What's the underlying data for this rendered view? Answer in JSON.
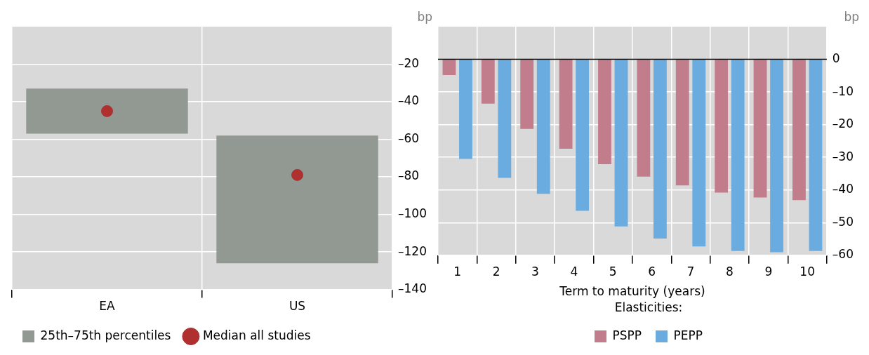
{
  "chart_data": [
    {
      "type": "bar",
      "categories": [
        "EA",
        "US"
      ],
      "ylabel": "bp",
      "ylim": [
        -140,
        0
      ],
      "yticks": [
        {
          "value": -140,
          "label": "–140"
        },
        {
          "value": -120,
          "label": "–120"
        },
        {
          "value": -100,
          "label": "–100"
        },
        {
          "value": -80,
          "label": "–80"
        },
        {
          "value": -60,
          "label": "–60"
        },
        {
          "value": -40,
          "label": "–40"
        },
        {
          "value": -20,
          "label": "–20"
        }
      ],
      "grid": true,
      "legend": "bottom left",
      "marker": "circle",
      "series": [
        {
          "name": "25th–75th percentiles",
          "color": "#929892",
          "base": [
            -57,
            -126
          ],
          "values": [
            24,
            68
          ]
        },
        {
          "type": "scatter",
          "name": "Median all studies",
          "color": "#b03030",
          "x": [
            "EA",
            "US"
          ],
          "values": [
            -45,
            -79
          ]
        }
      ]
    },
    {
      "type": "bar",
      "categories": [
        "1",
        "2",
        "3",
        "4",
        "5",
        "6",
        "7",
        "8",
        "9",
        "10"
      ],
      "xlabel": "Term to maturity (years)",
      "ylabel": "bp",
      "ylim": [
        -60,
        10
      ],
      "yticks": [
        {
          "value": -60,
          "label": "–60"
        },
        {
          "value": -50,
          "label": "–50"
        },
        {
          "value": -40,
          "label": "–40"
        },
        {
          "value": -30,
          "label": "–30"
        },
        {
          "value": -20,
          "label": "–20"
        },
        {
          "value": -10,
          "label": "–10"
        },
        0
      ],
      "grid": true,
      "legend": "bottom",
      "legend_title": "Elasticities:",
      "ref_lines": [
        {
          "axis": "y",
          "value": 0,
          "color": "#000000"
        }
      ],
      "series": [
        {
          "name": "PSPP",
          "color": "#c27d8c",
          "values": [
            -4.8,
            -13.6,
            -21.3,
            -27.4,
            -32.1,
            -35.9,
            -38.6,
            -40.8,
            -42.3,
            -43.1
          ]
        },
        {
          "name": "PEPP",
          "color": "#6aace0",
          "values": [
            -30.5,
            -36.3,
            -41.2,
            -46.4,
            -51.2,
            -54.9,
            -57.3,
            -58.7,
            -59.1,
            -58.7
          ]
        }
      ]
    }
  ]
}
